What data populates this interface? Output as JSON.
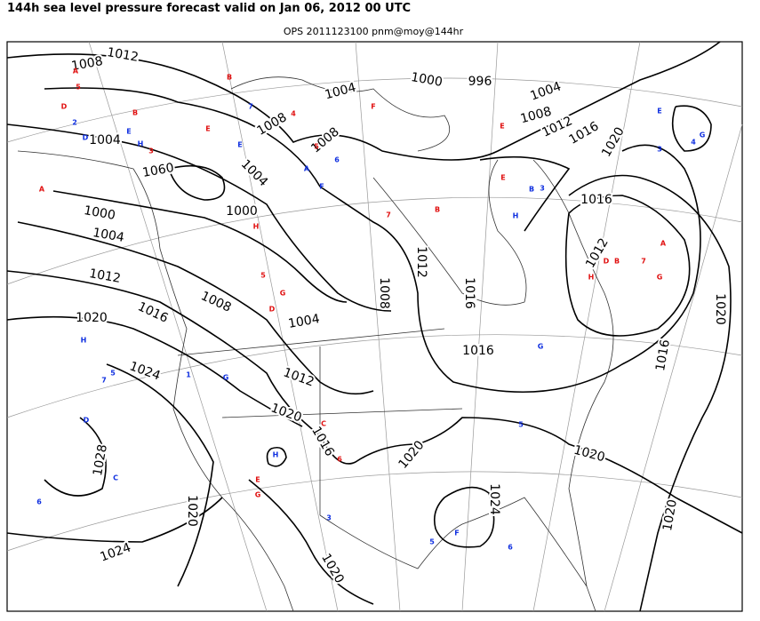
{
  "header": {
    "title": "144h sea level pressure forecast valid on Jan 06, 2012 00 UTC",
    "subtitle": "OPS 2011123100 pnm@moy@144hr"
  },
  "isobar_labels": [
    "1012",
    "1008",
    "1004",
    "1000",
    "996",
    "1004",
    "1008",
    "1012",
    "1016",
    "1020",
    "1004",
    "1008",
    "1008",
    "1060",
    "1004",
    "1000",
    "1000",
    "1004",
    "1012",
    "1008",
    "1020",
    "1016",
    "1004",
    "1008",
    "1012",
    "1016",
    "1016",
    "1012",
    "1016",
    "1020",
    "1016",
    "1024",
    "1012",
    "1020",
    "1016",
    "1028",
    "1020",
    "1020",
    "1020",
    "1024",
    "1020",
    "1024",
    "1020"
  ],
  "stations": [
    {
      "text": "A",
      "color": "red"
    },
    {
      "text": "B",
      "color": "red"
    },
    {
      "text": "5",
      "color": "red"
    },
    {
      "text": "D",
      "color": "red"
    },
    {
      "text": "2",
      "color": "blue"
    },
    {
      "text": "E",
      "color": "blue"
    },
    {
      "text": "H",
      "color": "blue"
    },
    {
      "text": "3",
      "color": "red"
    },
    {
      "text": "B",
      "color": "red"
    },
    {
      "text": "7",
      "color": "blue"
    },
    {
      "text": "4",
      "color": "red"
    },
    {
      "text": "D",
      "color": "blue"
    },
    {
      "text": "5",
      "color": "red"
    },
    {
      "text": "E",
      "color": "blue"
    },
    {
      "text": "F",
      "color": "blue"
    },
    {
      "text": "6",
      "color": "blue"
    },
    {
      "text": "A",
      "color": "blue"
    },
    {
      "text": "F",
      "color": "red"
    },
    {
      "text": "7",
      "color": "red"
    },
    {
      "text": "E",
      "color": "red"
    },
    {
      "text": "B",
      "color": "red"
    },
    {
      "text": "E",
      "color": "red"
    },
    {
      "text": "H",
      "color": "blue"
    },
    {
      "text": "B",
      "color": "blue"
    },
    {
      "text": "3",
      "color": "blue"
    },
    {
      "text": "H",
      "color": "red"
    },
    {
      "text": "D",
      "color": "red"
    },
    {
      "text": "5",
      "color": "red"
    },
    {
      "text": "G",
      "color": "red"
    },
    {
      "text": "E",
      "color": "red"
    },
    {
      "text": "A",
      "color": "red"
    },
    {
      "text": "H",
      "color": "blue"
    },
    {
      "text": "5",
      "color": "blue"
    },
    {
      "text": "7",
      "color": "blue"
    },
    {
      "text": "D",
      "color": "blue"
    },
    {
      "text": "C",
      "color": "blue"
    },
    {
      "text": "6",
      "color": "blue"
    },
    {
      "text": "1",
      "color": "blue"
    },
    {
      "text": "G",
      "color": "blue"
    },
    {
      "text": "C",
      "color": "red"
    },
    {
      "text": "6",
      "color": "red"
    },
    {
      "text": "E",
      "color": "red"
    },
    {
      "text": "G",
      "color": "red"
    },
    {
      "text": "3",
      "color": "blue"
    },
    {
      "text": "H",
      "color": "blue"
    },
    {
      "text": "5",
      "color": "blue"
    },
    {
      "text": "F",
      "color": "blue"
    },
    {
      "text": "6",
      "color": "blue"
    },
    {
      "text": "G",
      "color": "blue"
    },
    {
      "text": "5",
      "color": "blue"
    },
    {
      "text": "H",
      "color": "red"
    },
    {
      "text": "D",
      "color": "red"
    },
    {
      "text": "B",
      "color": "red"
    },
    {
      "text": "7",
      "color": "red"
    },
    {
      "text": "G",
      "color": "red"
    },
    {
      "text": "A",
      "color": "red"
    },
    {
      "text": "E",
      "color": "blue"
    },
    {
      "text": "3",
      "color": "blue"
    },
    {
      "text": "4",
      "color": "blue"
    },
    {
      "text": "G",
      "color": "blue"
    }
  ]
}
